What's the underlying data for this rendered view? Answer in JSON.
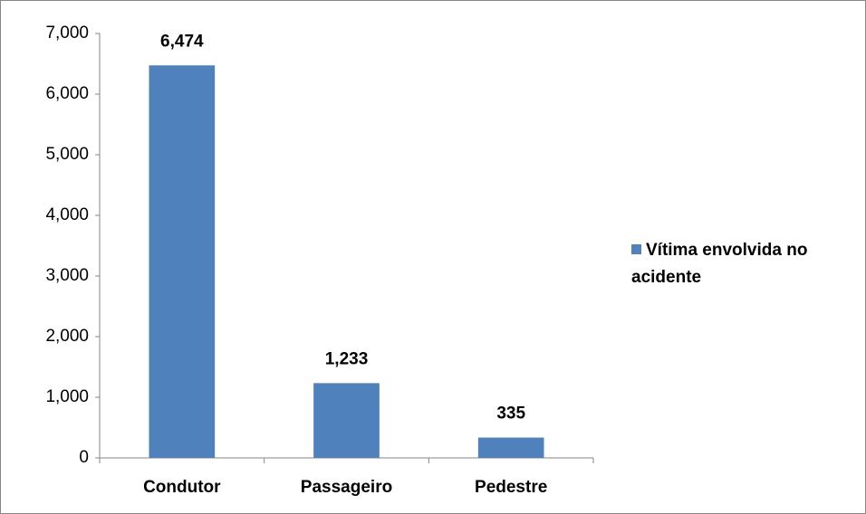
{
  "chart_data": {
    "type": "bar",
    "categories": [
      "Condutor",
      "Passageiro",
      "Pedestre"
    ],
    "series": [
      {
        "name": "Vítima envolvida no acidente",
        "color": "#4f81bd",
        "values": [
          6474,
          1233,
          335
        ],
        "value_labels": [
          "6,474",
          "1,233",
          "335"
        ]
      }
    ],
    "ylim": [
      0,
      7000
    ],
    "yticks": [
      0,
      {
        "value": 1000,
        "label": "1,000"
      },
      {
        "value": 2000,
        "label": "2,000"
      },
      {
        "value": 3000,
        "label": "3,000"
      },
      {
        "value": 4000,
        "label": "4,000"
      },
      {
        "value": 5000,
        "label": "5,000"
      },
      {
        "value": 6000,
        "label": "6,000"
      },
      {
        "value": 7000,
        "label": "7,000"
      }
    ],
    "legend": "right"
  }
}
